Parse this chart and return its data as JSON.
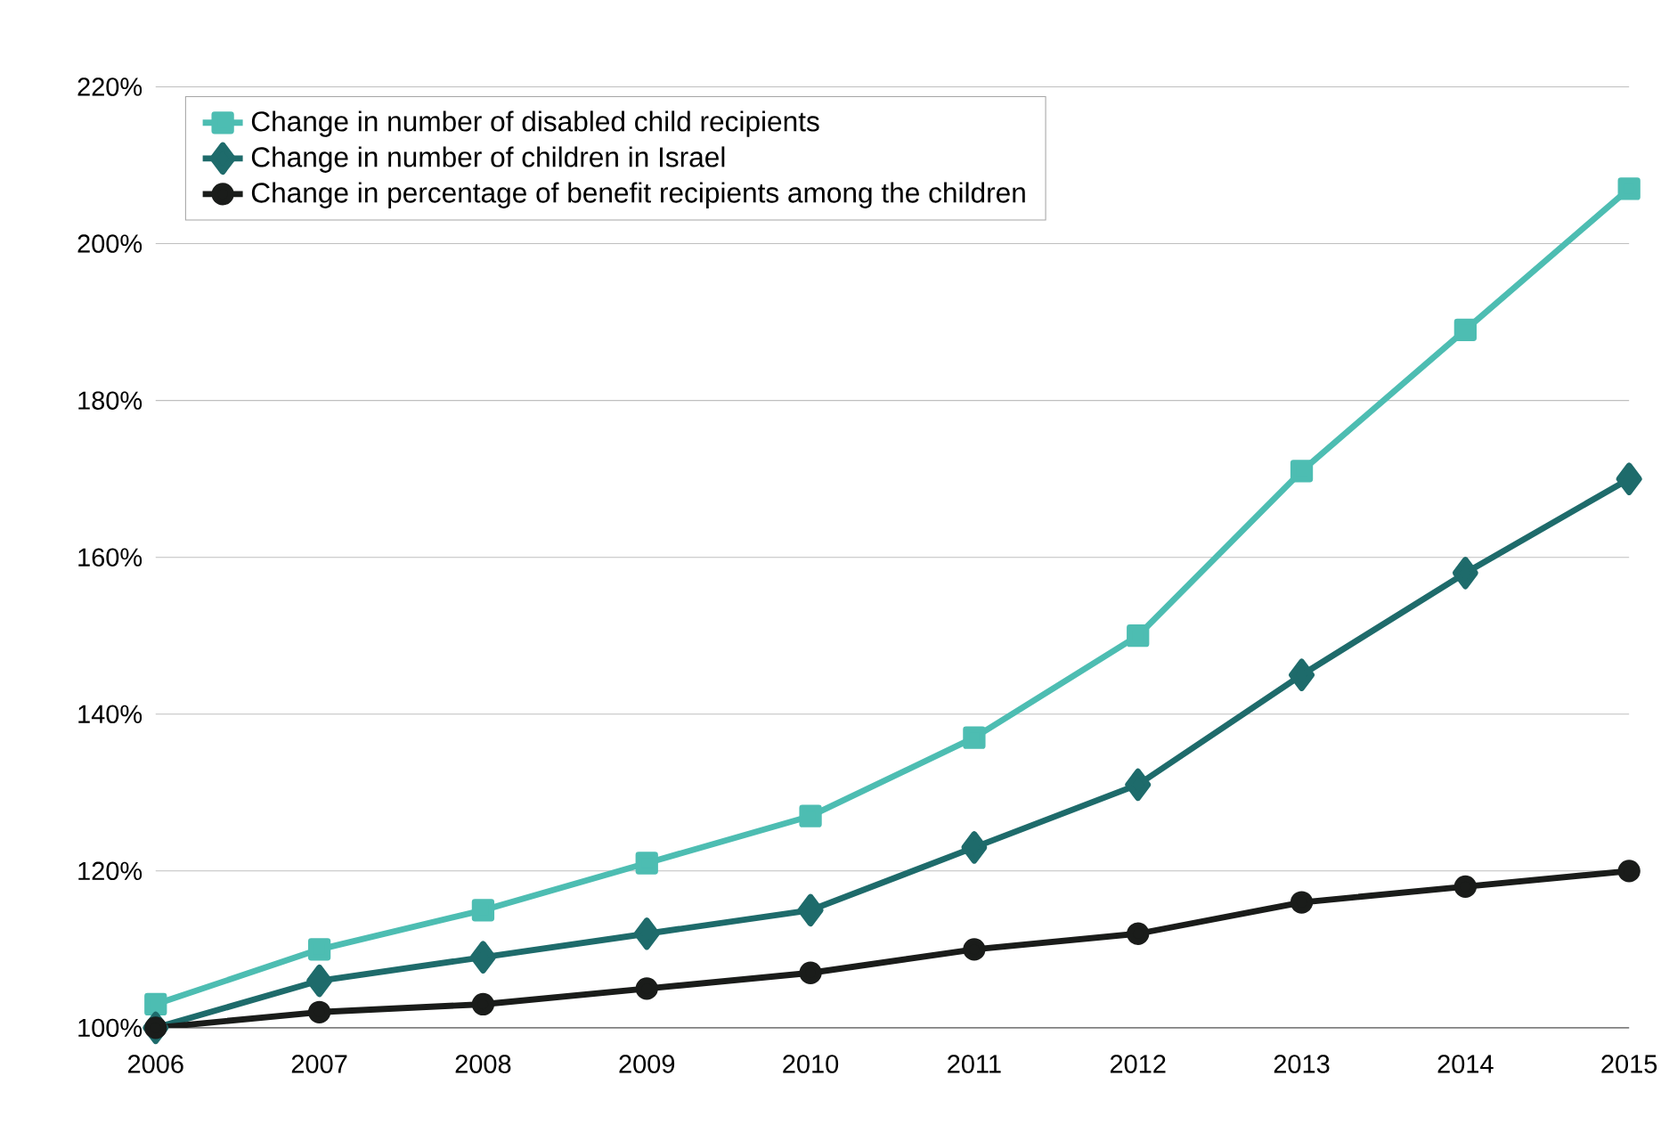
{
  "chart_data": {
    "type": "line",
    "categories": [
      "2006",
      "2007",
      "2008",
      "2009",
      "2010",
      "2011",
      "2012",
      "2013",
      "2014",
      "2015"
    ],
    "series": [
      {
        "name": "Change in number of disabled child recipients",
        "color": "#4dbdb2",
        "marker": "square",
        "values": [
          103,
          110,
          115,
          121,
          127,
          137,
          150,
          171,
          189,
          207
        ]
      },
      {
        "name": "Change in number of children in Israel",
        "color": "#1e6b6b",
        "marker": "diamond",
        "values": [
          100,
          106,
          109,
          112,
          115,
          123,
          131,
          145,
          158,
          170
        ]
      },
      {
        "name": "Change in percentage of benefit recipients among the children",
        "color": "#1a1c1a",
        "marker": "circle",
        "values": [
          100,
          102,
          103,
          105,
          107,
          110,
          112,
          116,
          118,
          120
        ]
      }
    ],
    "ylim": [
      100,
      220
    ],
    "yticks": [
      {
        "value": 100,
        "label": "100%"
      },
      {
        "value": 120,
        "label": "120%"
      },
      {
        "value": 140,
        "label": "140%"
      },
      {
        "value": 160,
        "label": "160%"
      },
      {
        "value": 180,
        "label": "180%"
      },
      {
        "value": 200,
        "label": "200%"
      },
      {
        "value": 220,
        "label": "220%"
      }
    ],
    "grid": "y",
    "legend": "top left",
    "line_style": "solid"
  }
}
